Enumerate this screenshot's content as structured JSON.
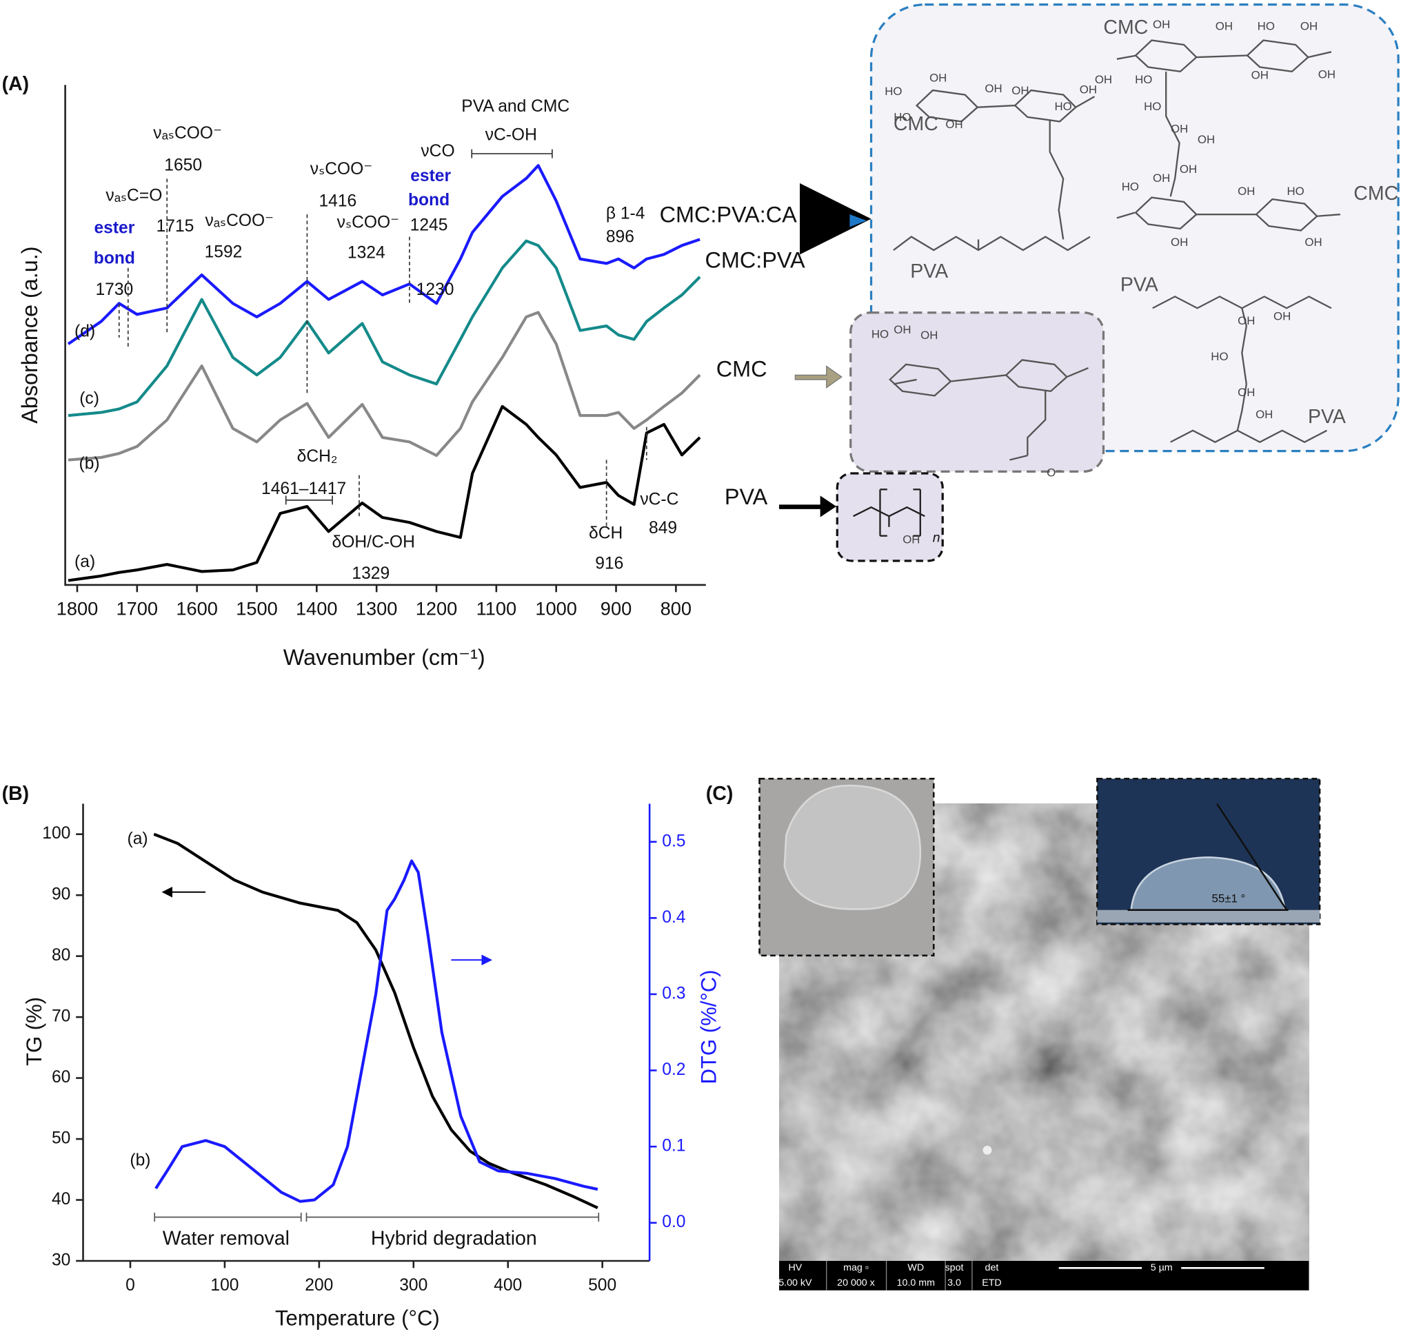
{
  "chart_data": [
    {
      "type": "line",
      "label": "(A)",
      "xlabel": "Wavenumber (cm⁻¹)",
      "ylabel": "Absorbance (a.u.)",
      "xlim": [
        1820,
        750
      ],
      "xticks": [
        1800,
        1700,
        1600,
        1500,
        1400,
        1300,
        1200,
        1100,
        1000,
        900,
        800
      ],
      "ylim": [
        0,
        10
      ],
      "x": [
        1815,
        1760,
        1730,
        1700,
        1650,
        1592,
        1540,
        1500,
        1461,
        1416,
        1380,
        1324,
        1290,
        1245,
        1200,
        1160,
        1140,
        1090,
        1050,
        1030,
        1000,
        960,
        916,
        896,
        870,
        849,
        820,
        790,
        760
      ],
      "series": [
        {
          "name": "PVA",
          "label": "(a)",
          "color": "#000000",
          "values": [
            0.09,
            0.18,
            0.25,
            0.3,
            0.41,
            0.27,
            0.3,
            0.45,
            1.43,
            1.57,
            1.07,
            1.64,
            1.35,
            1.25,
            1.07,
            0.95,
            2.23,
            3.57,
            3.21,
            2.95,
            2.6,
            1.95,
            2.05,
            1.79,
            1.61,
            3.04,
            3.21,
            2.6,
            2.95
          ]
        },
        {
          "name": "CMC",
          "label": "(b)",
          "color": "#888888",
          "values": [
            2.5,
            2.55,
            2.63,
            2.77,
            3.3,
            4.38,
            3.13,
            2.86,
            3.3,
            3.63,
            2.95,
            3.61,
            2.95,
            2.86,
            2.59,
            3.13,
            3.66,
            4.55,
            5.36,
            5.45,
            4.82,
            3.39,
            3.39,
            3.45,
            3.13,
            3.3,
            3.57,
            3.84,
            4.2
          ]
        },
        {
          "name": "CMC:PVA",
          "label": "(c)",
          "color": "#148a8a",
          "values": [
            3.39,
            3.45,
            3.52,
            3.66,
            4.38,
            5.71,
            4.55,
            4.2,
            4.55,
            5.27,
            4.64,
            5.23,
            4.46,
            4.2,
            4.02,
            4.91,
            5.36,
            6.34,
            6.88,
            6.79,
            6.34,
            5.09,
            5.18,
            5.0,
            4.91,
            5.27,
            5.54,
            5.8,
            6.16
          ]
        },
        {
          "name": "CMC:PVA:CA",
          "label": "(d)",
          "color": "#1a1aff",
          "values": [
            4.82,
            5.27,
            5.63,
            5.41,
            5.54,
            6.2,
            5.63,
            5.36,
            5.63,
            6.07,
            5.71,
            6.07,
            5.8,
            6.02,
            5.63,
            6.52,
            7.05,
            7.77,
            8.13,
            8.39,
            7.68,
            6.52,
            6.43,
            6.52,
            6.34,
            6.52,
            6.61,
            6.79,
            6.91
          ]
        }
      ],
      "annotations": [
        "PVA and CMC",
        "νC-OH",
        "νₐₛCOO⁻",
        "1650",
        "νₐₛC=O",
        "1715",
        "ester",
        "bond",
        "1730",
        "νₐₛCOO⁻",
        "1592",
        "νₛCOO⁻",
        "1416",
        "νₛCOO⁻",
        "1324",
        "νCO",
        "ester",
        "bond",
        "1245",
        "1230",
        "β 1-4",
        "896",
        "δCH₂",
        "1461–1417",
        "δOH/C-OH",
        "1329",
        "δCH",
        "916",
        "νC-C",
        "849"
      ]
    },
    {
      "type": "line",
      "label": "(B)",
      "xlabel": "Temperature (°C)",
      "ylabel": "TG (%)",
      "y2label": "DTG (%/°C)",
      "xlim": [
        -50,
        550
      ],
      "xticks": [
        0,
        100,
        200,
        300,
        400,
        500
      ],
      "ylim": [
        30,
        105
      ],
      "yticks": [
        30,
        40,
        50,
        60,
        70,
        80,
        90,
        100
      ],
      "y2lim": [
        -0.05,
        0.55
      ],
      "y2ticks": [
        {
          "value": 0,
          "label": "0.0"
        },
        0.1,
        0.2,
        0.3,
        0.4,
        0.5
      ],
      "series": [
        {
          "name": "(a)",
          "color": "#000000",
          "x": [
            25,
            50,
            80,
            110,
            140,
            180,
            220,
            240,
            260,
            280,
            300,
            320,
            340,
            360,
            380,
            400,
            440,
            470,
            495
          ],
          "values": [
            100,
            98.5,
            95.5,
            92.5,
            90.5,
            88.7,
            87.5,
            85.5,
            81,
            74,
            65,
            57,
            51.5,
            48,
            46,
            44.7,
            42.5,
            40.5,
            38.7
          ]
        },
        {
          "name": "(b)",
          "color": "#1a1aff",
          "axis": "y2",
          "x": [
            27,
            40,
            55,
            80,
            100,
            130,
            160,
            180,
            195,
            215,
            230,
            245,
            260,
            272,
            280,
            290,
            298,
            305,
            315,
            330,
            350,
            370,
            390,
            420,
            450,
            480,
            495
          ],
          "values": [
            0.045,
            0.07,
            0.1,
            0.108,
            0.1,
            0.07,
            0.04,
            0.028,
            0.03,
            0.05,
            0.1,
            0.2,
            0.3,
            0.41,
            0.425,
            0.45,
            0.475,
            0.46,
            0.38,
            0.25,
            0.14,
            0.08,
            0.068,
            0.065,
            0.058,
            0.048,
            0.044
          ]
        }
      ],
      "annotations": [
        "Water removal",
        "Hybrid degradation"
      ]
    }
  ],
  "structures": {
    "names": [
      "CMC",
      "CMC",
      "CMC",
      "PVA",
      "PVA",
      "PVA",
      "PVA"
    ],
    "groups": [
      "HO",
      "OH",
      "OH",
      "HO",
      "OH",
      "OH",
      "HO",
      "OH",
      "OH",
      "HO",
      "OH",
      "OH",
      "HO",
      "OH",
      "OH",
      "OH",
      "HO",
      "OH",
      "OH",
      "OH",
      "OH",
      "HO",
      "OH",
      "OH",
      "HO",
      "OH",
      "HO",
      "OH",
      "OH",
      "OH",
      "OH",
      "HO",
      "OH",
      "OH",
      "O⁻",
      "OH"
    ],
    "repeat": "n"
  },
  "panel_c": {
    "label": "(C)",
    "contact_angle": "55±1 °",
    "info_headers": [
      "HV",
      "mag ▫",
      "WD",
      "spot",
      "det"
    ],
    "info_values": [
      "5.00 kV",
      "20 000 x",
      "10.0 mm",
      "3.0",
      "ETD"
    ],
    "scale_bar": "5 µm"
  }
}
